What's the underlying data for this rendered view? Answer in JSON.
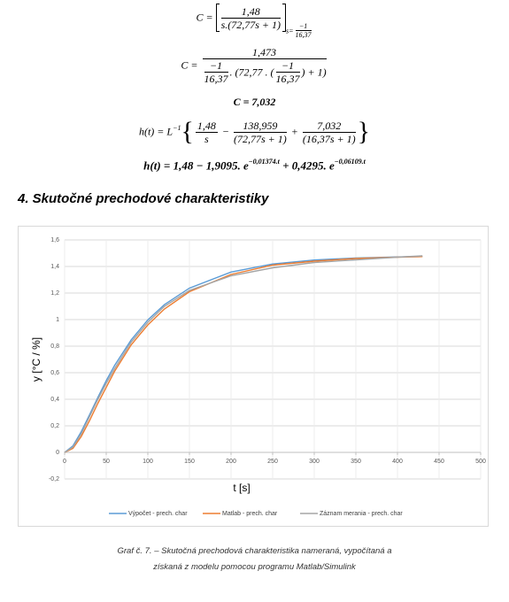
{
  "equations": {
    "eq1": {
      "lhs": "C =",
      "num": "1,48",
      "den": "s.(72,77s + 1)",
      "sub_prefix": "s=",
      "sub_num": "−1",
      "sub_den": "16,37"
    },
    "eq2": {
      "lhs": "C =",
      "num": "1,473",
      "f1_num": "−1",
      "f1_den": "16,37",
      "mid": ". (72,77 . (",
      "f2_num": "−1",
      "f2_den": "16,37",
      "end": ") + 1)"
    },
    "eq3": {
      "text": "C = 7,032"
    },
    "eq4": {
      "lhs": "h(t) = L",
      "sup": "−1",
      "t1_num": "1,48",
      "t1_den": "s",
      "op1": "−",
      "t2_num": "138,959",
      "t2_den": "(72,77s + 1)",
      "op2": "+",
      "t3_num": "7,032",
      "t3_den": "(16,37s + 1)"
    },
    "eq5": {
      "a": "h(t) = 1,48 − 1,9095. e",
      "sup1": "−0,01374.t",
      "b": " + 0,4295. e",
      "sup2": "−0,06109.t"
    }
  },
  "heading": "4. Skutočné prechodové charakteristiky",
  "chart_data": {
    "type": "line",
    "x_label": "t [s]",
    "y_label": "y [°C / %]",
    "x": [
      0,
      10,
      20,
      30,
      40,
      50,
      60,
      80,
      100,
      120,
      150,
      200,
      250,
      300,
      350,
      400,
      430
    ],
    "series": [
      {
        "name": "Výpočet - prech. char",
        "color": "#5b9bd5",
        "values": [
          0,
          0.049,
          0.156,
          0.284,
          0.415,
          0.54,
          0.654,
          0.847,
          0.998,
          1.113,
          1.237,
          1.358,
          1.419,
          1.449,
          1.464,
          1.472,
          1.475
        ]
      },
      {
        "name": "Matlab - prech. char",
        "color": "#ed7d31",
        "values": [
          0,
          0.03,
          0.12,
          0.24,
          0.37,
          0.49,
          0.61,
          0.81,
          0.96,
          1.08,
          1.21,
          1.34,
          1.41,
          1.44,
          1.46,
          1.47,
          1.475
        ]
      },
      {
        "name": "Záznam merania - prech. char",
        "color": "#a5a5a5",
        "values": [
          0,
          0.04,
          0.14,
          0.27,
          0.4,
          0.52,
          0.63,
          0.83,
          0.98,
          1.1,
          1.22,
          1.33,
          1.39,
          1.43,
          1.45,
          1.47,
          1.48
        ]
      }
    ],
    "xlim": [
      0,
      500
    ],
    "xticks": [
      0,
      50,
      100,
      150,
      200,
      250,
      300,
      350,
      400,
      450,
      500
    ],
    "ylim": [
      -0.2,
      1.6
    ],
    "yticks": [
      {
        "value": -0.2,
        "label": "-0,2"
      },
      0,
      {
        "value": 0.2,
        "label": "0,2"
      },
      {
        "value": 0.4,
        "label": "0,4"
      },
      {
        "value": 0.6,
        "label": "0,6"
      },
      {
        "value": 0.8,
        "label": "0,8"
      },
      1,
      {
        "value": 1.2,
        "label": "1,2"
      },
      {
        "value": 1.4,
        "label": "1,4"
      },
      {
        "value": 1.6,
        "label": "1,6"
      }
    ],
    "grid": true,
    "legend": "bottom"
  },
  "caption": {
    "line1": "Graf č.  7. – Skutočná prechodová charakteristika nameraná, vypočítaná a",
    "line2": "získaná z modelu pomocou programu Matlab/Simulink"
  }
}
